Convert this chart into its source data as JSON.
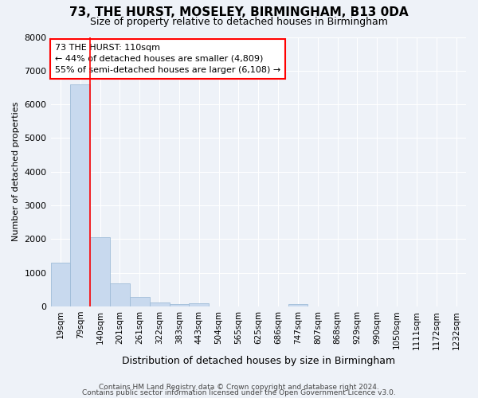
{
  "title": "73, THE HURST, MOSELEY, BIRMINGHAM, B13 0DA",
  "subtitle": "Size of property relative to detached houses in Birmingham",
  "xlabel": "Distribution of detached houses by size in Birmingham",
  "ylabel": "Number of detached properties",
  "bar_color": "#c8d9ee",
  "bar_edge_color": "#a0bdd8",
  "categories": [
    "19sqm",
    "79sqm",
    "140sqm",
    "201sqm",
    "261sqm",
    "322sqm",
    "383sqm",
    "443sqm",
    "504sqm",
    "565sqm",
    "625sqm",
    "686sqm",
    "747sqm",
    "807sqm",
    "868sqm",
    "929sqm",
    "990sqm",
    "1050sqm",
    "1111sqm",
    "1172sqm",
    "1232sqm"
  ],
  "values": [
    1300,
    6600,
    2060,
    680,
    290,
    130,
    75,
    100,
    0,
    0,
    0,
    0,
    70,
    0,
    0,
    0,
    0,
    0,
    0,
    0,
    0
  ],
  "ylim": [
    0,
    8000
  ],
  "yticks": [
    0,
    1000,
    2000,
    3000,
    4000,
    5000,
    6000,
    7000,
    8000
  ],
  "red_line_x": 1.5,
  "annotation_text_line1": "73 THE HURST: 110sqm",
  "annotation_text_line2": "← 44% of detached houses are smaller (4,809)",
  "annotation_text_line3": "55% of semi-detached houses are larger (6,108) →",
  "annotation_box_color": "white",
  "annotation_box_edge_color": "red",
  "footer_line1": "Contains HM Land Registry data © Crown copyright and database right 2024.",
  "footer_line2": "Contains public sector information licensed under the Open Government Licence v3.0.",
  "background_color": "#eef2f8",
  "grid_color": "white",
  "title_fontsize": 11,
  "subtitle_fontsize": 9,
  "ylabel_fontsize": 8,
  "xlabel_fontsize": 9
}
